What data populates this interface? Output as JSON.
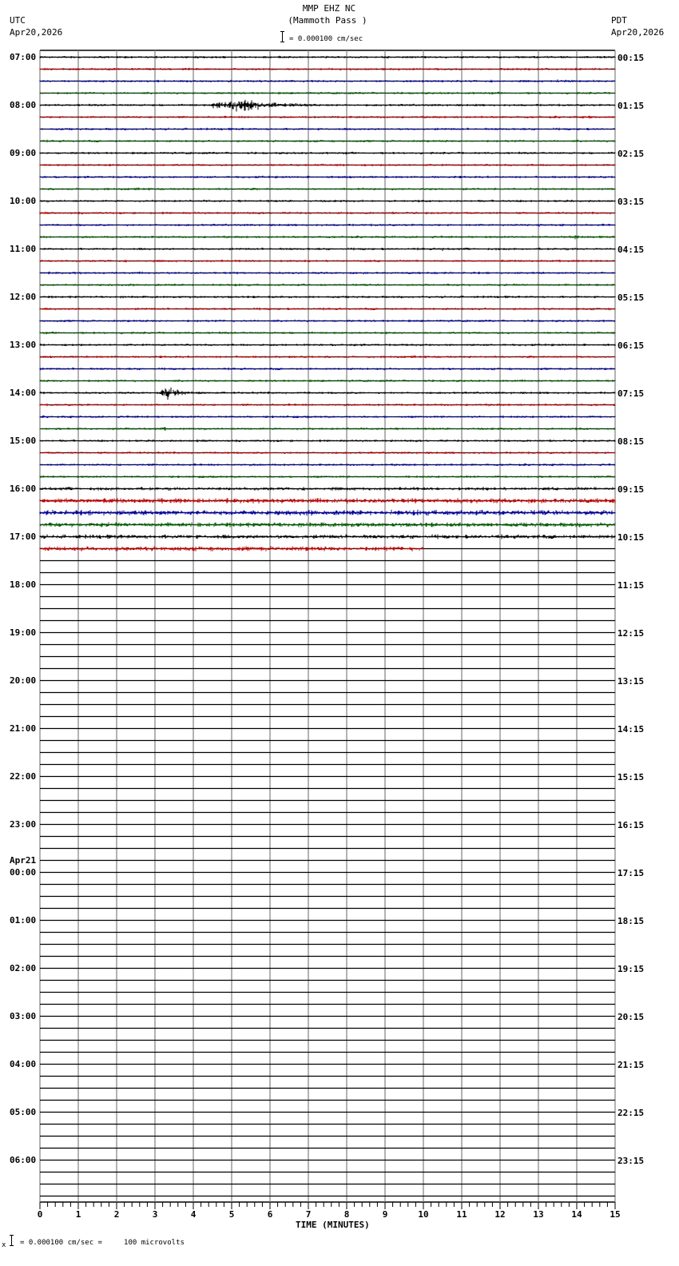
{
  "header": {
    "station": "MMP EHZ NC",
    "location": "(Mammoth Pass )",
    "left_tz": "UTC",
    "left_date": "Apr20,2026",
    "right_tz": "PDT",
    "right_date": "Apr20,2026",
    "scale_label": "= 0.000100 cm/sec"
  },
  "footer": {
    "scale_label": "= 0.000100 cm/sec =     100 microvolts",
    "prefix": "x"
  },
  "colors": {
    "trace_cycle": [
      "#000000",
      "#c00000",
      "#0000a0",
      "#006000"
    ],
    "grid": "#808080",
    "baseline": "#000000"
  },
  "chart_data": {
    "type": "line",
    "title": "MMP EHZ NC (Mammoth Pass )",
    "subtitle": "= 0.000100 cm/sec",
    "xlabel": "TIME (MINUTES)",
    "ylabel": "",
    "xlim": [
      0,
      15
    ],
    "x_ticks": [
      "0",
      "1",
      "2",
      "3",
      "4",
      "5",
      "6",
      "7",
      "8",
      "9",
      "10",
      "11",
      "12",
      "13",
      "14",
      "15"
    ],
    "rows_per_hour": 4,
    "row_minutes": 15,
    "total_rows": 96,
    "left_labels": [
      {
        "row": 0,
        "text": "07:00"
      },
      {
        "row": 4,
        "text": "08:00"
      },
      {
        "row": 8,
        "text": "09:00"
      },
      {
        "row": 12,
        "text": "10:00"
      },
      {
        "row": 16,
        "text": "11:00"
      },
      {
        "row": 20,
        "text": "12:00"
      },
      {
        "row": 24,
        "text": "13:00"
      },
      {
        "row": 28,
        "text": "14:00"
      },
      {
        "row": 32,
        "text": "15:00"
      },
      {
        "row": 36,
        "text": "16:00"
      },
      {
        "row": 40,
        "text": "17:00"
      },
      {
        "row": 44,
        "text": "18:00"
      },
      {
        "row": 48,
        "text": "19:00"
      },
      {
        "row": 52,
        "text": "20:00"
      },
      {
        "row": 56,
        "text": "21:00"
      },
      {
        "row": 60,
        "text": "22:00"
      },
      {
        "row": 64,
        "text": "23:00"
      },
      {
        "row": 68,
        "text": "00:00",
        "date": "Apr21"
      },
      {
        "row": 72,
        "text": "01:00"
      },
      {
        "row": 76,
        "text": "02:00"
      },
      {
        "row": 80,
        "text": "03:00"
      },
      {
        "row": 84,
        "text": "04:00"
      },
      {
        "row": 88,
        "text": "05:00"
      },
      {
        "row": 92,
        "text": "06:00"
      }
    ],
    "right_labels": [
      {
        "row": 0,
        "text": "00:15"
      },
      {
        "row": 4,
        "text": "01:15"
      },
      {
        "row": 8,
        "text": "02:15"
      },
      {
        "row": 12,
        "text": "03:15"
      },
      {
        "row": 16,
        "text": "04:15"
      },
      {
        "row": 20,
        "text": "05:15"
      },
      {
        "row": 24,
        "text": "06:15"
      },
      {
        "row": 28,
        "text": "07:15"
      },
      {
        "row": 32,
        "text": "08:15"
      },
      {
        "row": 36,
        "text": "09:15"
      },
      {
        "row": 40,
        "text": "10:15"
      },
      {
        "row": 44,
        "text": "11:15"
      },
      {
        "row": 48,
        "text": "12:15"
      },
      {
        "row": 52,
        "text": "13:15"
      },
      {
        "row": 56,
        "text": "14:15"
      },
      {
        "row": 60,
        "text": "15:15"
      },
      {
        "row": 64,
        "text": "16:15"
      },
      {
        "row": 68,
        "text": "17:15"
      },
      {
        "row": 72,
        "text": "18:15"
      },
      {
        "row": 76,
        "text": "19:15"
      },
      {
        "row": 80,
        "text": "20:15"
      },
      {
        "row": 84,
        "text": "21:15"
      },
      {
        "row": 88,
        "text": "22:15"
      },
      {
        "row": 92,
        "text": "23:15"
      }
    ],
    "data_rows_complete": 41,
    "last_row_end_minute": 10,
    "noise_amplitude_by_row": {
      "default": 1.3,
      "36": 1.8,
      "37": 2.6,
      "38": 2.8,
      "39": 2.4,
      "40": 2.2,
      "41": 2.4
    },
    "events": [
      {
        "row": 2,
        "start_min": 13.5,
        "end_min": 14.5,
        "amp": 4,
        "label": "small event"
      },
      {
        "row": 4,
        "start_min": 4.5,
        "end_min": 8.5,
        "amp": 9,
        "peak_min": 5.2,
        "label": "earthquake 08:00 row"
      },
      {
        "row": 5,
        "start_min": 14.3,
        "end_min": 14.45,
        "amp": 6,
        "label": "spike"
      },
      {
        "row": 14,
        "start_min": 13.0,
        "end_min": 13.8,
        "amp": 3,
        "label": "small event"
      },
      {
        "row": 15,
        "start_min": 13.8,
        "end_min": 14.5,
        "amp": 6,
        "label": "small event"
      },
      {
        "row": 16,
        "start_min": 10.5,
        "end_min": 10.6,
        "amp": 4,
        "label": "spike"
      },
      {
        "row": 25,
        "start_min": 13.4,
        "end_min": 13.5,
        "amp": 4,
        "label": "spike"
      },
      {
        "row": 25,
        "start_min": 14.0,
        "end_min": 14.05,
        "amp": 5,
        "label": "spike"
      },
      {
        "row": 26,
        "start_min": 10.7,
        "end_min": 11.0,
        "amp": 3,
        "label": "spike"
      },
      {
        "row": 27,
        "start_min": 12.0,
        "end_min": 12.1,
        "amp": 4,
        "label": "spike"
      },
      {
        "row": 28,
        "start_min": 3.15,
        "end_min": 4.5,
        "amp": 10,
        "peak_min": 3.3,
        "label": "earthquake 14:00 row"
      },
      {
        "row": 31,
        "start_min": 3.25,
        "end_min": 3.35,
        "amp": 4,
        "label": "spike"
      }
    ]
  }
}
